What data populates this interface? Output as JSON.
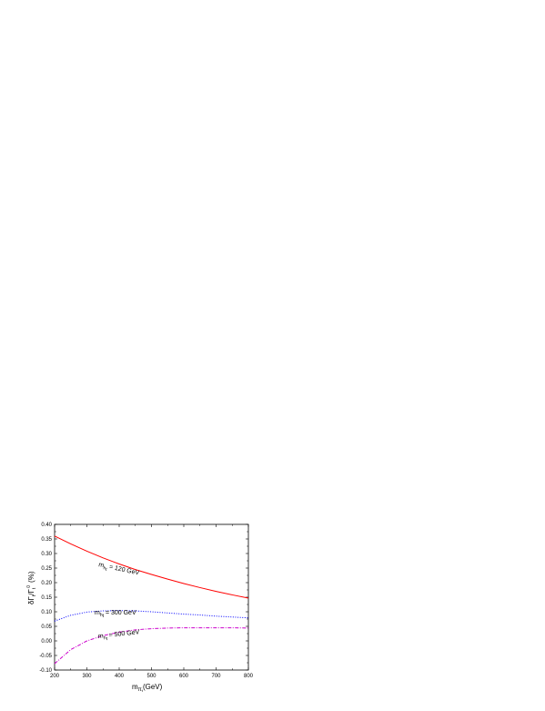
{
  "chart_data": {
    "type": "line",
    "xlabel": "m",
    "xlabel_sub": "π",
    "xlabel_subsub": "t",
    "xlabel_unit": "(GeV)",
    "ylabel": "δΓ",
    "ylabel_mid": "/Γ",
    "ylabel_sub": "t",
    "ylabel_sup": "0",
    "ylabel_unit": "(%)",
    "xlim": [
      200,
      800
    ],
    "ylim": [
      -0.1,
      0.4
    ],
    "xticks": [
      "200",
      "300",
      "400",
      "500",
      "600",
      "700",
      "800"
    ],
    "yticks": [
      "-0.10",
      "-0.05",
      "0.00",
      "0.05",
      "0.10",
      "0.15",
      "0.20",
      "0.25",
      "0.30",
      "0.35",
      "0.40"
    ],
    "grid": false,
    "series": [
      {
        "color": "#ff0000",
        "dash": "solid",
        "label_m": "m",
        "label_sub": "h",
        "label_subsub": "t",
        "label_value": " = 120 GeV",
        "x": [
          200,
          250,
          300,
          350,
          400,
          450,
          500,
          550,
          600,
          650,
          700,
          750,
          800
        ],
        "y": [
          0.36,
          0.333,
          0.308,
          0.285,
          0.264,
          0.245,
          0.228,
          0.212,
          0.197,
          0.183,
          0.17,
          0.158,
          0.147
        ]
      },
      {
        "color": "#0000ff",
        "dash": "dotted",
        "label_m": "m",
        "label_sub": "h",
        "label_subsub": "t",
        "label_value": " = 300 GeV",
        "x": [
          200,
          250,
          300,
          350,
          400,
          450,
          500,
          550,
          600,
          650,
          700,
          750,
          800
        ],
        "y": [
          0.068,
          0.088,
          0.099,
          0.103,
          0.104,
          0.103,
          0.1,
          0.096,
          0.092,
          0.089,
          0.085,
          0.082,
          0.079
        ]
      },
      {
        "color": "#cc00cc",
        "dash": "dashdot",
        "label_m": "m",
        "label_sub": "h",
        "label_subsub": "t",
        "label_value": " = 500 GeV",
        "x": [
          200,
          250,
          300,
          350,
          400,
          450,
          500,
          550,
          600,
          650,
          700,
          750,
          800
        ],
        "y": [
          -0.078,
          -0.03,
          0.0,
          0.018,
          0.03,
          0.038,
          0.042,
          0.044,
          0.045,
          0.045,
          0.045,
          0.045,
          0.044
        ]
      }
    ]
  }
}
